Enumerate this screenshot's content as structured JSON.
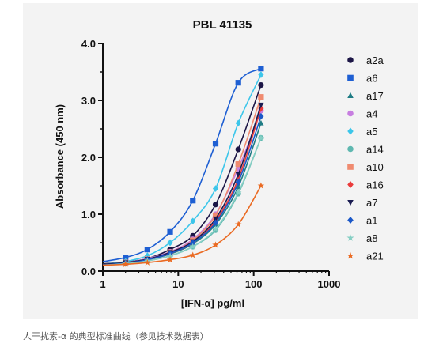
{
  "caption": "人干扰素-α 的典型标准曲线（参见技术数据表）",
  "chart_data": {
    "type": "scatter",
    "title": "PBL 41135",
    "xlabel": "[IFN-α] pg/ml",
    "ylabel": "Absorbance (450 nm)",
    "xscale": "log",
    "xlim": [
      1,
      1000
    ],
    "ylim": [
      0,
      4
    ],
    "xticks": [
      "1",
      "10",
      "100",
      "1000"
    ],
    "yticks": [
      "0.0",
      "1.0",
      "2.0",
      "3.0",
      "4.0"
    ],
    "legend_position": "right",
    "x": [
      2,
      3.9,
      7.8,
      15.6,
      31.25,
      62.5,
      125
    ],
    "series": [
      {
        "name": "a2a",
        "color": "#1c1646",
        "marker": "circle",
        "values": [
          0.16,
          0.22,
          0.38,
          0.62,
          1.17,
          2.14,
          3.27
        ]
      },
      {
        "name": "a6",
        "color": "#1e5fd3",
        "marker": "square",
        "values": [
          0.24,
          0.38,
          0.69,
          1.24,
          2.24,
          3.31,
          3.56
        ]
      },
      {
        "name": "a17",
        "color": "#1f7c84",
        "marker": "triangle",
        "values": [
          0.14,
          0.2,
          0.3,
          0.48,
          0.82,
          1.48,
          2.6
        ]
      },
      {
        "name": "a4",
        "color": "#c77ee0",
        "marker": "circle",
        "values": [
          0.15,
          0.22,
          0.34,
          0.56,
          1.0,
          1.8,
          2.82
        ]
      },
      {
        "name": "a5",
        "color": "#3cc6ea",
        "marker": "diamond",
        "values": [
          0.17,
          0.27,
          0.5,
          0.88,
          1.45,
          2.6,
          3.45
        ]
      },
      {
        "name": "a14",
        "color": "#5fb8b0",
        "marker": "circle",
        "values": [
          0.13,
          0.18,
          0.27,
          0.43,
          0.72,
          1.36,
          2.34
        ]
      },
      {
        "name": "a10",
        "color": "#f08b70",
        "marker": "square",
        "values": [
          0.15,
          0.21,
          0.33,
          0.54,
          0.98,
          1.88,
          3.06
        ]
      },
      {
        "name": "a16",
        "color": "#ea3b3b",
        "marker": "diamond",
        "values": [
          0.14,
          0.2,
          0.31,
          0.5,
          0.88,
          1.62,
          2.86
        ]
      },
      {
        "name": "a7",
        "color": "#1a1c52",
        "marker": "triangle-down",
        "values": [
          0.15,
          0.21,
          0.33,
          0.52,
          0.92,
          1.7,
          2.92
        ]
      },
      {
        "name": "a1",
        "color": "#1b58c8",
        "marker": "diamond",
        "values": [
          0.14,
          0.2,
          0.31,
          0.5,
          0.85,
          1.56,
          2.72
        ]
      },
      {
        "name": "a8",
        "color": "#86cfc4",
        "marker": "star",
        "values": [
          0.13,
          0.18,
          0.27,
          0.43,
          0.74,
          1.38,
          2.34
        ]
      },
      {
        "name": "a21",
        "color": "#ea6a22",
        "marker": "star",
        "values": [
          0.12,
          0.15,
          0.2,
          0.28,
          0.46,
          0.82,
          1.5
        ]
      }
    ]
  }
}
